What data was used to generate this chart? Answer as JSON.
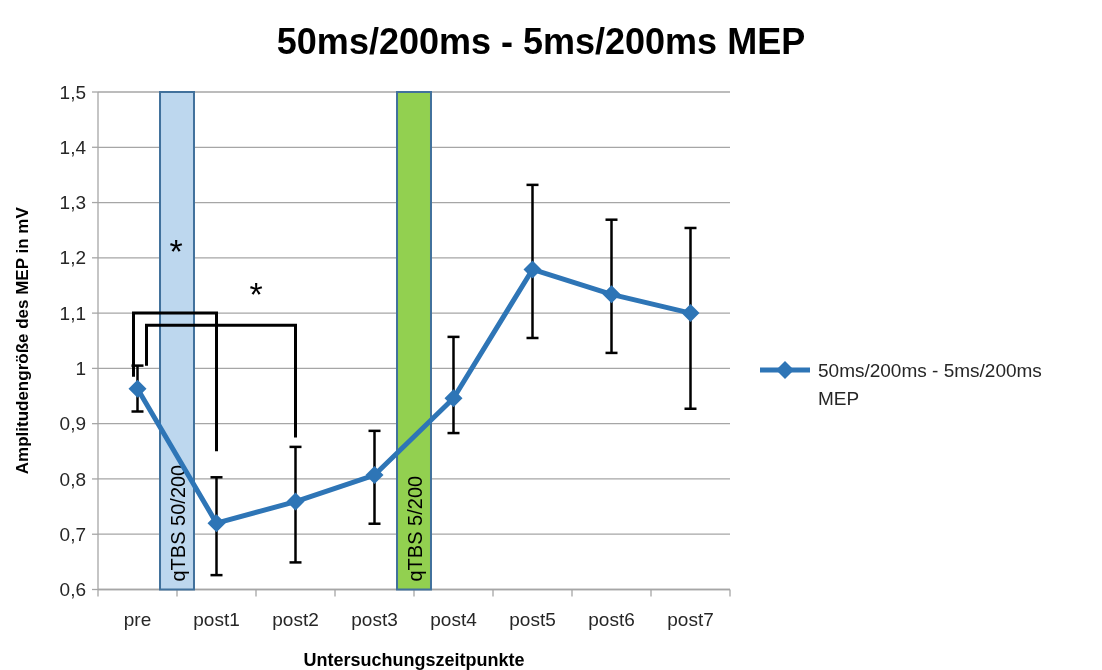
{
  "chart_data": {
    "type": "line",
    "title": "50ms/200ms - 5ms/200ms MEP",
    "xlabel": "Untersuchungszeitpunkte",
    "ylabel": "Amplitudengröße des MEP in mV",
    "categories": [
      "pre",
      "post1",
      "post2",
      "post3",
      "post4",
      "post5",
      "post6",
      "post7"
    ],
    "series": [
      {
        "name": "50ms/200ms - 5ms/200ms MEP",
        "color": "#2e75b6",
        "values": [
          0.963,
          0.72,
          0.759,
          0.807,
          0.946,
          1.179,
          1.134,
          1.1
        ],
        "errors": [
          [
            0.922,
            1.005
          ],
          [
            0.626,
            0.803
          ],
          [
            0.649,
            0.858
          ],
          [
            0.719,
            0.887
          ],
          [
            0.883,
            1.057
          ],
          [
            1.055,
            1.332
          ],
          [
            1.028,
            1.269
          ],
          [
            0.927,
            1.254
          ]
        ]
      }
    ],
    "ylim": [
      0.6,
      1.5
    ],
    "yticks": [
      {
        "value": 0.6,
        "label": "0,6"
      },
      {
        "value": 0.7,
        "label": "0,7"
      },
      {
        "value": 0.8,
        "label": "0,8"
      },
      {
        "value": 0.9,
        "label": "0,9"
      },
      1,
      {
        "value": 1.1,
        "label": "1,1"
      },
      {
        "value": 1.2,
        "label": "1,2"
      },
      {
        "value": 1.3,
        "label": "1,3"
      },
      {
        "value": 1.4,
        "label": "1,4"
      },
      {
        "value": 1.5,
        "label": "1,5"
      }
    ],
    "grid": "y",
    "legend": "right",
    "marker": "diamond",
    "line_style": "solid",
    "bands": [
      {
        "axis": "x",
        "from": "pre",
        "to": "post1",
        "label": "qTBS 50/200",
        "color": "#bdd7ee"
      },
      {
        "axis": "x",
        "from": "post3",
        "to": "post4",
        "label": "qTBS 5/200",
        "color": "#92d050"
      }
    ],
    "annotations": [
      "*",
      "*"
    ]
  }
}
